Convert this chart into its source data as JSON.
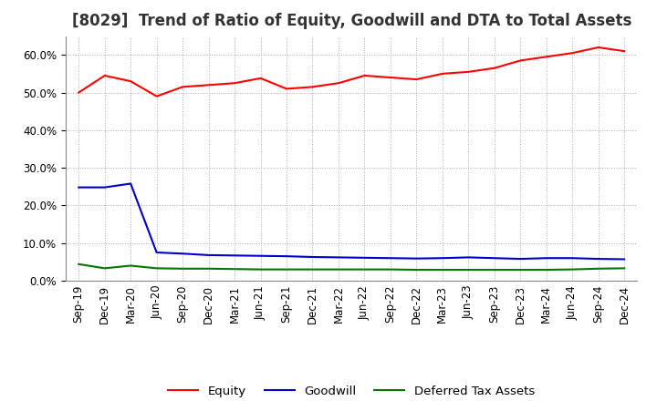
{
  "title": "[8029]  Trend of Ratio of Equity, Goodwill and DTA to Total Assets",
  "x_labels": [
    "Sep-19",
    "Dec-19",
    "Mar-20",
    "Jun-20",
    "Sep-20",
    "Dec-20",
    "Mar-21",
    "Jun-21",
    "Sep-21",
    "Dec-21",
    "Mar-22",
    "Jun-22",
    "Sep-22",
    "Dec-22",
    "Mar-23",
    "Jun-23",
    "Sep-23",
    "Dec-23",
    "Mar-24",
    "Jun-24",
    "Sep-24",
    "Dec-24"
  ],
  "equity": [
    0.5,
    0.545,
    0.53,
    0.49,
    0.515,
    0.52,
    0.525,
    0.538,
    0.51,
    0.515,
    0.525,
    0.545,
    0.54,
    0.535,
    0.55,
    0.555,
    0.565,
    0.585,
    0.595,
    0.605,
    0.62,
    0.61
  ],
  "goodwill": [
    0.248,
    0.248,
    0.258,
    0.075,
    0.072,
    0.068,
    0.067,
    0.066,
    0.065,
    0.063,
    0.062,
    0.061,
    0.06,
    0.059,
    0.06,
    0.062,
    0.06,
    0.058,
    0.06,
    0.06,
    0.058,
    0.057
  ],
  "dta": [
    0.044,
    0.033,
    0.04,
    0.033,
    0.032,
    0.032,
    0.031,
    0.03,
    0.03,
    0.03,
    0.03,
    0.03,
    0.03,
    0.029,
    0.029,
    0.029,
    0.029,
    0.029,
    0.029,
    0.03,
    0.032,
    0.033
  ],
  "equity_color": "#FF0000",
  "goodwill_color": "#0000CC",
  "dta_color": "#007700",
  "ylim": [
    0.0,
    0.65
  ],
  "yticks": [
    0.0,
    0.1,
    0.2,
    0.3,
    0.4,
    0.5,
    0.6
  ],
  "legend_labels": [
    "Equity",
    "Goodwill",
    "Deferred Tax Assets"
  ],
  "background_color": "#FFFFFF",
  "grid_color": "#AAAAAA",
  "title_fontsize": 12,
  "tick_fontsize": 8.5,
  "legend_fontsize": 9.5
}
